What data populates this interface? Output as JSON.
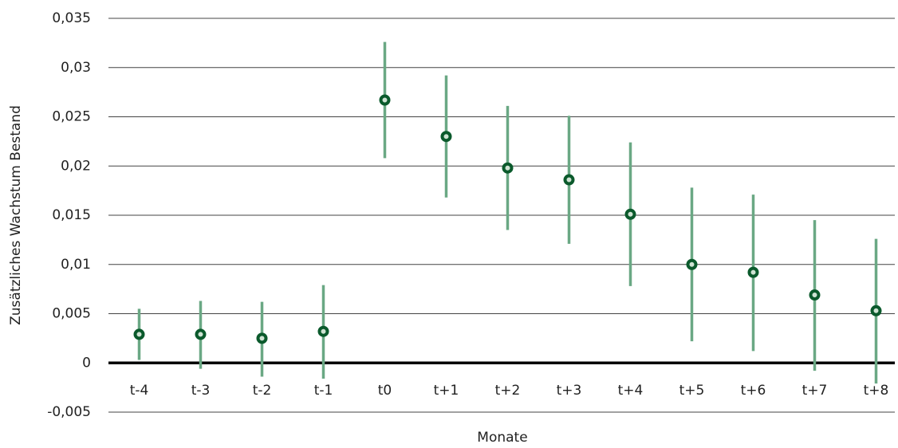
{
  "chart_data": {
    "type": "errorbar",
    "x_label": "Monate",
    "y_label": "Zusätzliches Wachstum Bestand",
    "categories": [
      "t-4",
      "t-3",
      "t-2",
      "t-1",
      "t0",
      "t+1",
      "t+2",
      "t+3",
      "t+4",
      "t+5",
      "t+6",
      "t+7",
      "t+8"
    ],
    "values": [
      0.0029,
      0.0029,
      0.0025,
      0.0032,
      0.0267,
      0.023,
      0.0198,
      0.0186,
      0.0151,
      0.01,
      0.0092,
      0.0069,
      0.0053
    ],
    "lower": [
      0.0003,
      -0.0006,
      -0.0014,
      -0.0016,
      0.0208,
      0.0168,
      0.0135,
      0.0121,
      0.0078,
      0.0022,
      0.0012,
      -0.0008,
      -0.0021
    ],
    "upper": [
      0.0055,
      0.0063,
      0.0062,
      0.0079,
      0.0326,
      0.0292,
      0.0261,
      0.0251,
      0.0224,
      0.0178,
      0.0171,
      0.0145,
      0.0126
    ],
    "color": "#0b5a2c",
    "bar_color": "#6aa884",
    "ylim": [
      -0.005,
      0.035
    ],
    "yticks": [
      {
        "value": -0.005,
        "label": "-0,005"
      },
      0,
      {
        "value": 0.005,
        "label": "0,005"
      },
      {
        "value": 0.01,
        "label": "0,01"
      },
      {
        "value": 0.015,
        "label": "0,015"
      },
      {
        "value": 0.02,
        "label": "0,02"
      },
      {
        "value": 0.025,
        "label": "0,025"
      },
      {
        "value": 0.03,
        "label": "0,03"
      },
      {
        "value": 0.035,
        "label": "0,035"
      }
    ],
    "grid": true
  }
}
